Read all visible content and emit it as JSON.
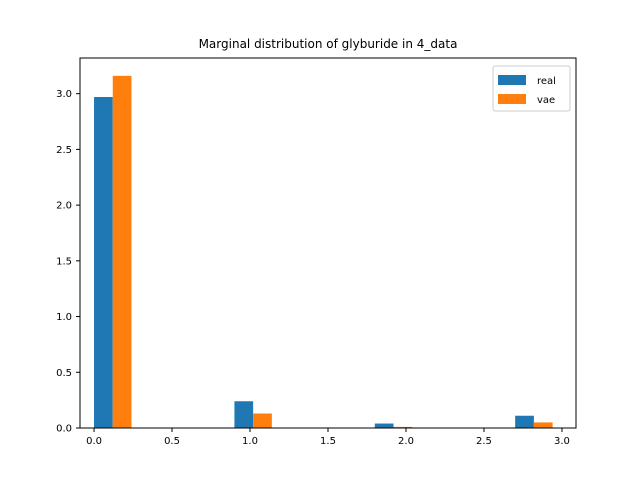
{
  "chart_data": {
    "type": "bar",
    "title": "Marginal distribution of glyburide in 4_data",
    "xlabel": "",
    "ylabel": "",
    "xlim": [
      -0.09,
      3.09
    ],
    "ylim": [
      0,
      3.32
    ],
    "xticks": [
      0.0,
      0.5,
      1.0,
      1.5,
      2.0,
      2.5,
      3.0
    ],
    "xtick_labels": [
      "0.0",
      "0.5",
      "1.0",
      "1.5",
      "2.0",
      "2.5",
      "3.0"
    ],
    "yticks": [
      0.0,
      0.5,
      1.0,
      1.5,
      2.0,
      2.5,
      3.0
    ],
    "ytick_labels": [
      "0.0",
      "0.5",
      "1.0",
      "1.5",
      "2.0",
      "2.5",
      "3.0"
    ],
    "grid": false,
    "legend_position": "top-right",
    "bar_width": 0.12,
    "series": [
      {
        "name": "real",
        "color": "#1f77b4",
        "x": [
          0.06,
          0.96,
          1.86,
          2.76
        ],
        "values": [
          2.97,
          0.24,
          0.04,
          0.11
        ]
      },
      {
        "name": "vae",
        "color": "#ff7f0e",
        "x": [
          0.18,
          1.08,
          1.98,
          2.88
        ],
        "values": [
          3.16,
          0.13,
          0.01,
          0.05
        ]
      }
    ]
  }
}
